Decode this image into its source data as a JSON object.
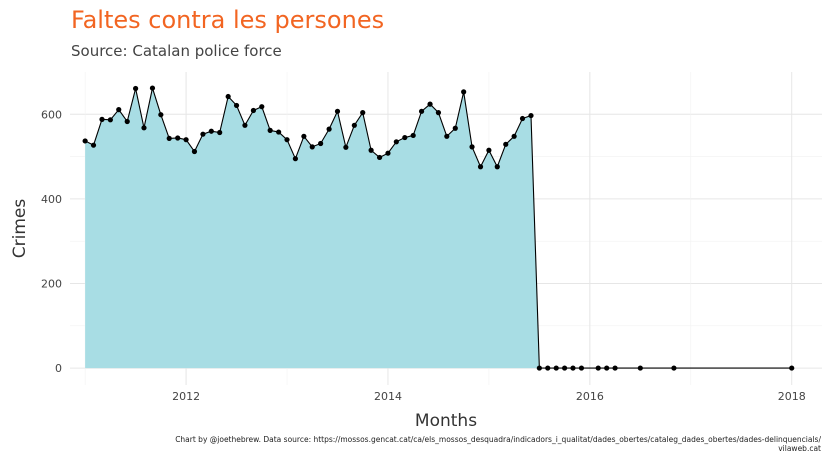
{
  "chart_data": {
    "type": "area",
    "title": "Faltes contra les persones",
    "subtitle": "Source: Catalan police force",
    "xlabel": "Months",
    "ylabel": "Crimes",
    "xlim": [
      2010.85,
      2018.3
    ],
    "ylim": [
      -40,
      700
    ],
    "xticks": [
      2012,
      2014,
      2016,
      2018
    ],
    "xtick_labels": [
      "2012",
      "2014",
      "2016",
      "2018"
    ],
    "yticks": [
      0,
      200,
      400,
      600
    ],
    "ytick_labels": [
      "0",
      "200",
      "400",
      "600"
    ],
    "grid": true,
    "colors": {
      "area": "#a8dde4",
      "line": "#000000",
      "points": "#000000",
      "title": "#f26522"
    },
    "series": [
      {
        "x": [
          2011.0,
          2011.083,
          2011.167,
          2011.25,
          2011.333,
          2011.417,
          2011.5,
          2011.583,
          2011.667,
          2011.75,
          2011.833,
          2011.917,
          2012.0,
          2012.083,
          2012.167,
          2012.25,
          2012.333,
          2012.417,
          2012.5,
          2012.583,
          2012.667,
          2012.75,
          2012.833,
          2012.917,
          2013.0,
          2013.083,
          2013.167,
          2013.25,
          2013.333,
          2013.417,
          2013.5,
          2013.583,
          2013.667,
          2013.75,
          2013.833,
          2013.917,
          2014.0,
          2014.083,
          2014.167,
          2014.25,
          2014.333,
          2014.417,
          2014.5,
          2014.583,
          2014.667,
          2014.75,
          2014.833,
          2014.917,
          2015.0,
          2015.083,
          2015.167,
          2015.25,
          2015.333,
          2015.417,
          2015.5,
          2015.583,
          2015.667,
          2015.75,
          2015.833,
          2015.917,
          2016.083,
          2016.167,
          2016.25,
          2016.5,
          2016.833,
          2018.0
        ],
        "y": [
          537,
          527,
          588,
          587,
          611,
          583,
          661,
          568,
          662,
          599,
          543,
          544,
          540,
          512,
          553,
          560,
          557,
          642,
          621,
          574,
          609,
          618,
          562,
          558,
          540,
          495,
          548,
          523,
          531,
          565,
          607,
          522,
          574,
          604,
          515,
          498,
          508,
          535,
          545,
          550,
          607,
          624,
          604,
          548,
          567,
          653,
          523,
          476,
          515,
          476,
          529,
          548,
          590,
          597,
          0,
          0,
          0,
          0,
          0,
          0,
          0,
          0,
          0,
          0,
          0,
          0
        ]
      }
    ]
  },
  "caption": {
    "line1": "Chart by @joethebrew. Data source: https://mossos.gencat.cat/ca/els_mossos_desquadra/indicadors_i_qualitat/dades_obertes/cataleg_dades_obertes/dades-delinquencials/",
    "line2": "vilaweb.cat"
  }
}
